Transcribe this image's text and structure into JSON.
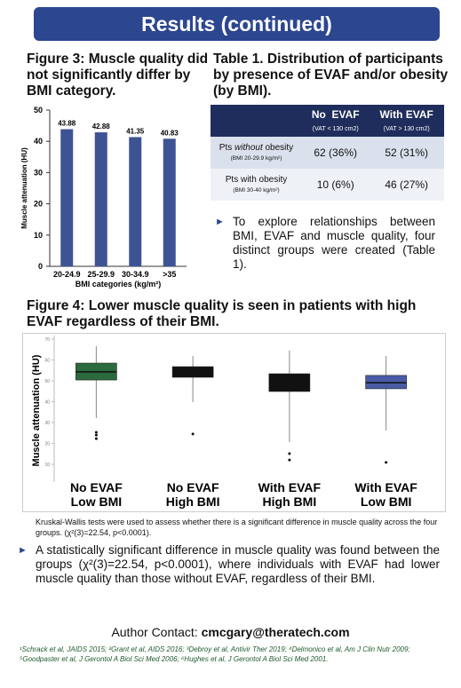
{
  "header": {
    "title": "Results (continued)"
  },
  "figure3": {
    "title": "Figure 3: Muscle quality did not significantly differ by BMI category."
  },
  "table1": {
    "title": "Table 1. Distribution of participants by presence of EVAF and/or obesity (by BMI).",
    "columns": [
      {
        "name": "No  EVAF",
        "sub": "(VAT < 130 cm2)"
      },
      {
        "name": "With EVAF",
        "sub": "(VAT > 130 cm2)"
      }
    ],
    "rows": [
      {
        "label_start": "Pts ",
        "label_em": "without",
        "label_end": " obesity",
        "sub": "(BMI 20-29.9 kg/m²)",
        "cells": [
          "62 (36%)",
          "52 (31%)"
        ]
      },
      {
        "label_start": "Pts with obesity",
        "sub": "(BMI 30-40 kg/m²)",
        "cells": [
          "10 (6%)",
          "46 (27%)"
        ]
      }
    ],
    "bullet": "To explore relationships between BMI, EVAF and muscle quality, four distinct groups were created (Table 1)."
  },
  "figure4": {
    "title": "Figure 4: Lower muscle quality is seen in patients with high EVAF regardless of their BMI.",
    "caption": "Kruskal-Wallis tests were used to assess whether there is a significant difference in muscle quality across the four groups. (χ²(3)=22.54, p<0.0001).",
    "bullet": "A statistically significant difference in muscle quality was found between the groups (χ²(3)=22.54, p<0.0001), where individuals with EVAF had lower muscle quality than those without EVAF, regardless of their BMI."
  },
  "contact": {
    "label": "Author Contact: ",
    "email": "cmcgary@theratech.com"
  },
  "references": "¹Schrack et al, JAIDS 2015; ²Grant et al, AIDS 2016; ³Debroy et al, Antivir Ther 2019; ⁴Delmonico et al, Am J Clin Nutr 2009; ⁵Goodpaster et al, J Gerontol A Biol Sci Med 2006; ⁶Hughes et al, J Gerontol A Biol Sci Med 2001.",
  "chart_data": [
    {
      "type": "bar",
      "categories": [
        "20-24.9",
        "25-29.9",
        "30-34.9",
        ">35"
      ],
      "values": [
        43.88,
        42.88,
        41.35,
        40.83
      ],
      "color": "#3e5394",
      "ylim": [
        0,
        50
      ],
      "yticks": [
        0,
        10,
        20,
        30,
        40,
        50
      ],
      "ylabel": "Muscle attenuation (HU)",
      "xlabel": "BMI categories (kg/m²)"
    },
    {
      "type": "box",
      "categories": [
        [
          "No EVAF",
          "Low BMI"
        ],
        [
          "No EVAF",
          "High BMI"
        ],
        [
          "With EVAF",
          "High BMI"
        ],
        [
          "With EVAF",
          "Low BMI"
        ]
      ],
      "colors": [
        "#2b6a3c",
        "#2b6a3c",
        "#4a5ba6",
        "#4a5ba6"
      ],
      "hatch": [
        false,
        true,
        true,
        false
      ],
      "boxes": [
        {
          "whisker_low": 32.1,
          "q1": 50.4,
          "median": 54.3,
          "q3": 58.5,
          "whisker_high": 66.6,
          "outliers": [
            25.3,
            24,
            22.3
          ]
        },
        {
          "whisker_low": 39.8,
          "q1": 51.7,
          "median": 54.3,
          "q3": 56.8,
          "whisker_high": 61.9,
          "outliers": [
            24.5
          ]
        },
        {
          "whisker_low": 20.6,
          "q1": 44.9,
          "median": 49.1,
          "q3": 53.4,
          "whisker_high": 64.5,
          "outliers": [
            15.1,
            12.1
          ]
        },
        {
          "whisker_low": 26.2,
          "q1": 46.2,
          "median": 49.1,
          "q3": 52.6,
          "whisker_high": 61.9,
          "outliers": [
            10.9
          ]
        }
      ],
      "ylim": [
        10,
        70
      ],
      "yticks": [
        10,
        20,
        30,
        40,
        50,
        60,
        70
      ],
      "ylabel": "Muscle attenuation (HU)"
    }
  ]
}
